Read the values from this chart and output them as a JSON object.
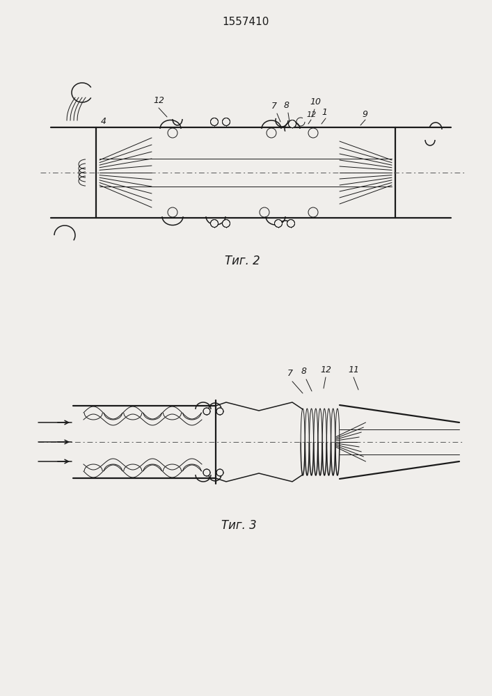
{
  "title": "1557410",
  "fig2_caption": "Τиг. 2",
  "fig3_caption": "Τиг. 3",
  "bg_color": "#f0eeeb",
  "line_color": "#1a1a1a",
  "lw": 1.1,
  "lw_thin": 0.7,
  "lw_thick": 1.6
}
